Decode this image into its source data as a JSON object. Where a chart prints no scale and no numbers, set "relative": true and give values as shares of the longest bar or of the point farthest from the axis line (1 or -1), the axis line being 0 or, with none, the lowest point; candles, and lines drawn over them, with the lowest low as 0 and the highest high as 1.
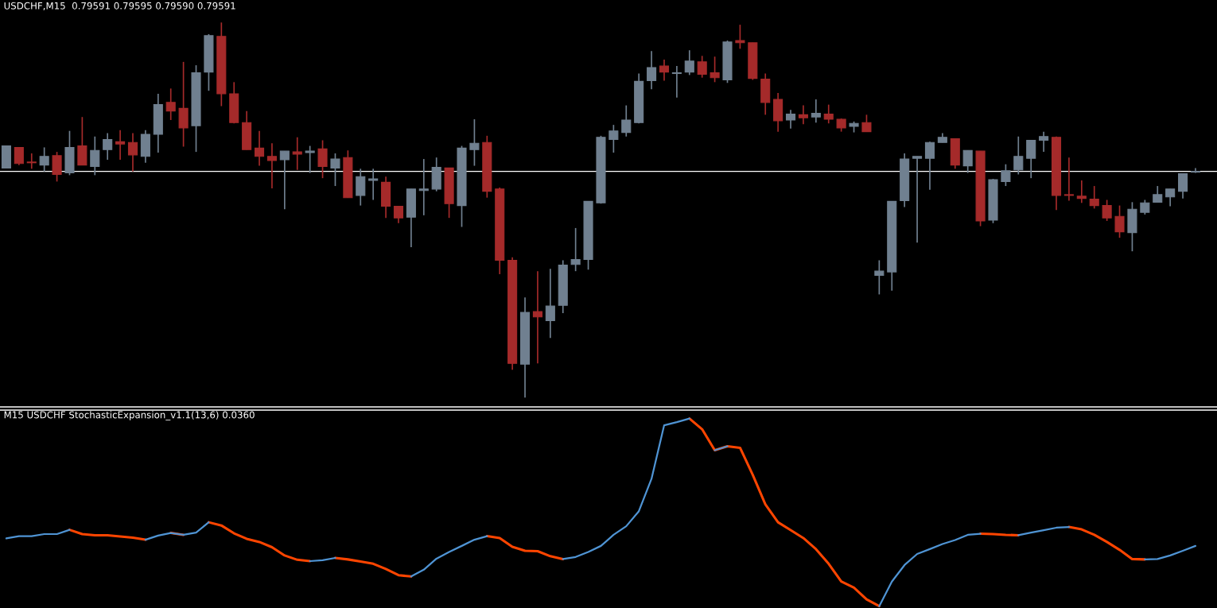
{
  "chart_data": [
    {
      "type": "candlestick",
      "title": "USDCHF,M15  0.79591 0.79595 0.79590 0.79591",
      "relative": true,
      "categories": [
        null,
        null,
        null,
        null,
        null,
        null,
        null,
        null,
        null,
        null,
        null,
        null,
        null,
        null,
        null,
        null,
        null,
        null,
        null,
        null,
        null,
        null,
        null,
        null,
        null,
        null,
        null,
        null,
        null,
        null,
        null,
        null,
        null,
        null,
        null,
        null,
        null,
        null,
        null,
        null,
        null,
        null,
        null,
        null,
        null,
        null,
        null,
        null,
        null,
        null,
        null,
        null,
        null,
        null,
        null,
        null,
        null,
        null,
        null,
        null,
        null,
        null,
        null,
        null,
        null,
        null,
        null,
        null,
        null,
        null,
        null,
        null,
        null,
        null,
        null,
        null,
        null,
        null,
        null,
        null,
        null,
        null,
        null,
        null,
        null,
        null,
        null,
        null,
        null,
        null,
        null,
        null,
        null,
        null,
        null
      ],
      "ohlc": [
        [
          0.612,
          0.671,
          0.612,
          0.671
        ],
        [
          0.667,
          0.667,
          0.62,
          0.624
        ],
        [
          0.628,
          0.651,
          0.61,
          0.626
        ],
        [
          0.62,
          0.667,
          0.603,
          0.643
        ],
        [
          0.645,
          0.655,
          0.576,
          0.595
        ],
        [
          0.599,
          0.711,
          0.593,
          0.667
        ],
        [
          0.671,
          0.748,
          0.62,
          0.62
        ],
        [
          0.616,
          0.696,
          0.593,
          0.659
        ],
        [
          0.661,
          0.705,
          0.634,
          0.688
        ],
        [
          0.682,
          0.713,
          0.634,
          0.676
        ],
        [
          0.68,
          0.705,
          0.603,
          0.647
        ],
        [
          0.643,
          0.713,
          0.626,
          0.702
        ],
        [
          0.702,
          0.81,
          0.653,
          0.781
        ],
        [
          0.787,
          0.824,
          0.74,
          0.764
        ],
        [
          0.771,
          0.895,
          0.669,
          0.719
        ],
        [
          0.725,
          0.886,
          0.655,
          0.866
        ],
        [
          0.868,
          0.969,
          0.818,
          0.965
        ],
        [
          0.963,
          1.0,
          0.777,
          0.81
        ],
        [
          0.81,
          0.841,
          0.731,
          0.733
        ],
        [
          0.733,
          0.764,
          0.661,
          0.661
        ],
        [
          0.665,
          0.711,
          0.618,
          0.643
        ],
        [
          0.643,
          0.678,
          0.558,
          0.632
        ],
        [
          0.634,
          0.657,
          0.502,
          0.657
        ],
        [
          0.655,
          0.694,
          0.607,
          0.649
        ],
        [
          0.653,
          0.671,
          0.599,
          0.657
        ],
        [
          0.663,
          0.686,
          0.585,
          0.616
        ],
        [
          0.612,
          0.651,
          0.564,
          0.636
        ],
        [
          0.64,
          0.659,
          0.533,
          0.533
        ],
        [
          0.539,
          0.61,
          0.512,
          0.589
        ],
        [
          0.579,
          0.61,
          0.527,
          0.583
        ],
        [
          0.574,
          0.589,
          0.479,
          0.51
        ],
        [
          0.51,
          0.51,
          0.465,
          0.479
        ],
        [
          0.481,
          0.556,
          0.401,
          0.556
        ],
        [
          0.552,
          0.636,
          0.486,
          0.556
        ],
        [
          0.556,
          0.64,
          0.55,
          0.614
        ],
        [
          0.612,
          0.612,
          0.479,
          0.517
        ],
        [
          0.512,
          0.671,
          0.455,
          0.665
        ],
        [
          0.661,
          0.742,
          0.618,
          0.678
        ],
        [
          0.68,
          0.698,
          0.533,
          0.55
        ],
        [
          0.556,
          0.56,
          0.329,
          0.366
        ],
        [
          0.366,
          0.374,
          0.074,
          0.091
        ],
        [
          0.089,
          0.267,
          0,
          0.227
        ],
        [
          0.229,
          0.337,
          0.091,
          0.215
        ],
        [
          0.205,
          0.343,
          0.159,
          0.244
        ],
        [
          0.246,
          0.366,
          0.225,
          0.353
        ],
        [
          0.355,
          0.452,
          0.337,
          0.368
        ],
        [
          0.368,
          0.523,
          0.341,
          0.523
        ],
        [
          0.519,
          0.698,
          0.517,
          0.694
        ],
        [
          0.688,
          0.727,
          0.653,
          0.711
        ],
        [
          0.707,
          0.779,
          0.696,
          0.74
        ],
        [
          0.733,
          0.864,
          0.731,
          0.843
        ],
        [
          0.845,
          0.924,
          0.822,
          0.88
        ],
        [
          0.884,
          0.901,
          0.845,
          0.868
        ],
        [
          0.864,
          0.884,
          0.8,
          0.866
        ],
        [
          0.868,
          0.926,
          0.86,
          0.897
        ],
        [
          0.895,
          0.911,
          0.853,
          0.862
        ],
        [
          0.866,
          0.909,
          0.841,
          0.853
        ],
        [
          0.847,
          0.952,
          0.839,
          0.948
        ],
        [
          0.952,
          0.994,
          0.93,
          0.946
        ],
        [
          0.946,
          0.946,
          0.847,
          0.851
        ],
        [
          0.849,
          0.864,
          0.754,
          0.787
        ],
        [
          0.795,
          0.812,
          0.709,
          0.738
        ],
        [
          0.74,
          0.767,
          0.717,
          0.756
        ],
        [
          0.754,
          0.779,
          0.729,
          0.746
        ],
        [
          0.748,
          0.795,
          0.733,
          0.758
        ],
        [
          0.756,
          0.781,
          0.731,
          0.742
        ],
        [
          0.742,
          0.744,
          0.709,
          0.719
        ],
        [
          0.723,
          0.736,
          0.707,
          0.731
        ],
        [
          0.733,
          0.754,
          0.709,
          0.709
        ],
        [
          0.326,
          0.366,
          0.275,
          0.337
        ],
        [
          0.335,
          0.523,
          0.285,
          0.523
        ],
        [
          0.525,
          0.651,
          0.508,
          0.636
        ],
        [
          0.638,
          0.643,
          0.413,
          0.643
        ],
        [
          0.638,
          0.682,
          0.554,
          0.68
        ],
        [
          0.68,
          0.705,
          0.68,
          0.694
        ],
        [
          0.69,
          0.69,
          0.61,
          0.62
        ],
        [
          0.618,
          0.659,
          0.599,
          0.659
        ],
        [
          0.657,
          0.657,
          0.457,
          0.471
        ],
        [
          0.473,
          0.583,
          0.465,
          0.581
        ],
        [
          0.576,
          0.622,
          0.564,
          0.605
        ],
        [
          0.607,
          0.696,
          0.595,
          0.643
        ],
        [
          0.638,
          0.686,
          0.585,
          0.686
        ],
        [
          0.686,
          0.709,
          0.655,
          0.696
        ],
        [
          0.694,
          0.696,
          0.5,
          0.539
        ],
        [
          0.541,
          0.64,
          0.525,
          0.539
        ],
        [
          0.537,
          0.579,
          0.519,
          0.531
        ],
        [
          0.529,
          0.564,
          0.504,
          0.512
        ],
        [
          0.512,
          0.527,
          0.471,
          0.479
        ],
        [
          0.483,
          0.512,
          0.426,
          0.442
        ],
        [
          0.44,
          0.521,
          0.39,
          0.502
        ],
        [
          0.494,
          0.527,
          0.488,
          0.519
        ],
        [
          0.521,
          0.564,
          0.521,
          0.541
        ],
        [
          0.535,
          0.556,
          0.51,
          0.556
        ],
        [
          0.55,
          0.597,
          0.531,
          0.597
        ],
        [
          0.601,
          0.612,
          0.599,
          0.603
        ]
      ],
      "colors": [
        "#708090",
        "#a52a2a",
        "#a52a2a",
        "#708090",
        "#a52a2a",
        "#708090",
        "#a52a2a",
        "#708090",
        "#708090",
        "#a52a2a",
        "#a52a2a",
        "#708090",
        "#708090",
        "#a52a2a",
        "#a52a2a",
        "#708090",
        "#708090",
        "#a52a2a",
        "#a52a2a",
        "#a52a2a",
        "#a52a2a",
        "#a52a2a",
        "#708090",
        "#a52a2a",
        "#708090",
        "#a52a2a",
        "#708090",
        "#a52a2a",
        "#708090",
        "#708090",
        "#a52a2a",
        "#a52a2a",
        "#708090",
        "#708090",
        "#708090",
        "#a52a2a",
        "#708090",
        "#708090",
        "#a52a2a",
        "#a52a2a",
        "#a52a2a",
        "#708090",
        "#a52a2a",
        "#708090",
        "#708090",
        "#708090",
        "#708090",
        "#708090",
        "#708090",
        "#708090",
        "#708090",
        "#708090",
        "#a52a2a",
        "#708090",
        "#708090",
        "#a52a2a",
        "#a52a2a",
        "#708090",
        "#a52a2a",
        "#a52a2a",
        "#a52a2a",
        "#a52a2a",
        "#708090",
        "#a52a2a",
        "#708090",
        "#a52a2a",
        "#a52a2a",
        "#708090",
        "#a52a2a",
        "#708090",
        "#708090",
        "#708090",
        "#708090",
        "#708090",
        "#708090",
        "#a52a2a",
        "#708090",
        "#a52a2a",
        "#708090",
        "#708090",
        "#708090",
        "#708090",
        "#708090",
        "#a52a2a",
        "#a52a2a",
        "#a52a2a",
        "#a52a2a",
        "#a52a2a",
        "#a52a2a",
        "#708090",
        "#708090",
        "#708090",
        "#708090",
        "#708090",
        "#708090"
      ],
      "ref_lines": [
        {
          "axis": "y",
          "value": 0.603,
          "color": "#ffffff"
        }
      ]
    },
    {
      "type": "line",
      "title": "M15 USDCHF StochasticExpansion_v1.1(13,6) 0.0360",
      "relative": true,
      "categories": [
        null,
        null,
        null,
        null,
        null,
        null,
        null,
        null,
        null,
        null,
        null,
        null,
        null,
        null,
        null,
        null,
        null,
        null,
        null,
        null,
        null,
        null,
        null,
        null,
        null,
        null,
        null,
        null,
        null,
        null,
        null,
        null,
        null,
        null,
        null,
        null,
        null,
        null,
        null,
        null,
        null,
        null,
        null,
        null,
        null,
        null,
        null,
        null,
        null,
        null,
        null,
        null,
        null,
        null,
        null,
        null,
        null,
        null,
        null,
        null,
        null,
        null,
        null,
        null,
        null,
        null,
        null,
        null,
        null,
        null,
        null,
        null,
        null,
        null,
        null,
        null,
        null,
        null,
        null,
        null,
        null,
        null,
        null,
        null,
        null,
        null,
        null,
        null,
        null,
        null,
        null,
        null,
        null,
        null,
        null
      ],
      "series": [
        {
          "color": "#4f94d4",
          "values": [
            0.361,
            0.373,
            0.373,
            0.384,
            0.384,
            0.407,
            null,
            null,
            null,
            null,
            null,
            0.354,
            0.376,
            0.39,
            0.38,
            0.392,
            0.447,
            null,
            null,
            null,
            null,
            null,
            null,
            null,
            0.24,
            0.245,
            0.257,
            null,
            null,
            null,
            null,
            null,
            0.158,
            0.194,
            0.253,
            0.289,
            0.321,
            0.354,
            0.373,
            null,
            null,
            null,
            null,
            null,
            0.251,
            0.262,
            0.289,
            0.321,
            0.38,
            0.426,
            0.506,
            0.679,
            0.964,
            0.981,
            1.0,
            null,
            0.831,
            0.852,
            null,
            null,
            null,
            null,
            null,
            null,
            null,
            null,
            null,
            null,
            null,
            0,
            0.131,
            0.219,
            0.278,
            0.304,
            0.331,
            0.352,
            0.38,
            0.386,
            null,
            null,
            0.378,
            0.392,
            0.405,
            0.418,
            0.422,
            null,
            null,
            null,
            null,
            null,
            0.249,
            0.251,
            0.27,
            0.295,
            0.321
          ]
        },
        {
          "color": "#ff4500",
          "values": [
            null,
            null,
            null,
            null,
            null,
            0.407,
            0.384,
            0.378,
            0.378,
            0.371,
            0.365,
            0.354,
            null,
            0.39,
            0.38,
            null,
            0.447,
            0.43,
            0.388,
            0.359,
            0.342,
            0.314,
            0.27,
            0.247,
            0.24,
            null,
            0.257,
            0.249,
            0.238,
            0.226,
            0.198,
            0.165,
            0.158,
            null,
            null,
            null,
            null,
            null,
            0.373,
            0.363,
            0.316,
            0.295,
            0.293,
            0.266,
            0.251,
            null,
            null,
            null,
            null,
            null,
            null,
            null,
            null,
            null,
            1.0,
            0.943,
            0.831,
            0.852,
            0.844,
            0.7,
            0.542,
            0.447,
            0.405,
            0.363,
            0.304,
            0.226,
            0.131,
            0.099,
            0.036,
            0,
            null,
            null,
            null,
            null,
            null,
            null,
            null,
            0.386,
            0.384,
            0.38,
            0.378,
            null,
            null,
            null,
            0.422,
            0.409,
            0.38,
            0.342,
            0.3,
            0.251,
            0.249,
            null,
            null,
            null,
            null
          ]
        }
      ]
    }
  ]
}
